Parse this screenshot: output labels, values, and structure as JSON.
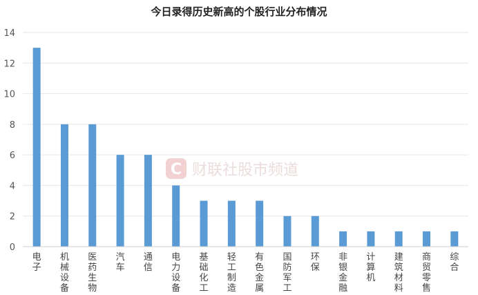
{
  "watermark": {
    "logo_letter": "C",
    "text": "财联社股市频道",
    "color": "#f0c9c9"
  },
  "chart_data": {
    "type": "bar",
    "title": "今日录得历史新高的个股行业分布情况",
    "xlabel": "",
    "ylabel": "",
    "ylim": [
      0,
      14
    ],
    "yticks": [
      0,
      2,
      4,
      6,
      8,
      10,
      12,
      14
    ],
    "grid": true,
    "bar_color": "#5b9bd5",
    "categories": [
      "电子",
      "机械设备",
      "医药生物",
      "汽车",
      "通信",
      "电力设备",
      "基础化工",
      "轻工制造",
      "有色金属",
      "国防军工",
      "环保",
      "非银金融",
      "计算机",
      "建筑材料",
      "商贸零售",
      "综合"
    ],
    "values": [
      13,
      8,
      8,
      6,
      6,
      4,
      3,
      3,
      3,
      2,
      2,
      1,
      1,
      1,
      1,
      1
    ]
  }
}
